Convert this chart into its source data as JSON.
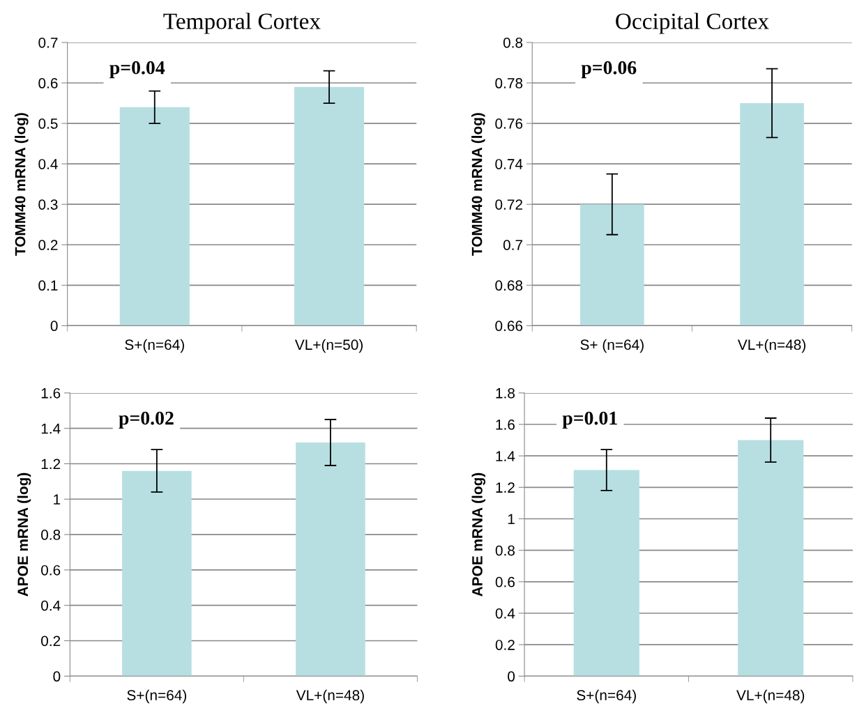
{
  "chart_data": [
    {
      "type": "bar",
      "title": "Temporal Cortex",
      "ylabel": "TOMM40 mRNA (log)",
      "categories": [
        "S+(n=64)",
        "VL+(n=50)"
      ],
      "values": [
        0.54,
        0.59
      ],
      "errors": [
        0.04,
        0.04
      ],
      "color": "#b7dfe2",
      "ylim": [
        0,
        0.7
      ],
      "yticks": [
        0,
        0.1,
        0.2,
        0.3,
        0.4,
        0.5,
        0.6,
        0.7
      ],
      "grid": "y",
      "annotations": [
        "p=0.04"
      ]
    },
    {
      "type": "bar",
      "title": "Occipital Cortex",
      "ylabel": "TOMM40 mRNA (log)",
      "categories": [
        "S+ (n=64)",
        "VL+(n=48)"
      ],
      "values": [
        0.72,
        0.77
      ],
      "errors": [
        0.015,
        0.017
      ],
      "color": "#b7dfe2",
      "ylim": [
        0.66,
        0.8
      ],
      "yticks": [
        0.66,
        0.68,
        0.7,
        0.72,
        0.74,
        0.76,
        0.78,
        0.8
      ],
      "grid": "y",
      "annotations": [
        "p=0.06"
      ]
    },
    {
      "type": "bar",
      "ylabel": "APOE mRNA (log)",
      "categories": [
        "S+(n=64)",
        "VL+(n=48)"
      ],
      "values": [
        1.16,
        1.32
      ],
      "errors": [
        0.12,
        0.13
      ],
      "color": "#b7dfe2",
      "ylim": [
        0,
        1.6
      ],
      "yticks": [
        0,
        0.2,
        0.4,
        0.6,
        0.8,
        1,
        1.2,
        1.4,
        1.6
      ],
      "grid": "y",
      "annotations": [
        "p=0.02"
      ]
    },
    {
      "type": "bar",
      "ylabel": "APOE mRNA (log)",
      "categories": [
        "S+(n=64)",
        "VL+(n=48)"
      ],
      "values": [
        1.31,
        1.5
      ],
      "errors": [
        0.13,
        0.14
      ],
      "color": "#b7dfe2",
      "ylim": [
        0,
        1.8
      ],
      "yticks": [
        0,
        0.2,
        0.4,
        0.6,
        0.8,
        1,
        1.2,
        1.4,
        1.6,
        1.8
      ],
      "grid": "y",
      "annotations": [
        "p=0.01"
      ]
    }
  ]
}
